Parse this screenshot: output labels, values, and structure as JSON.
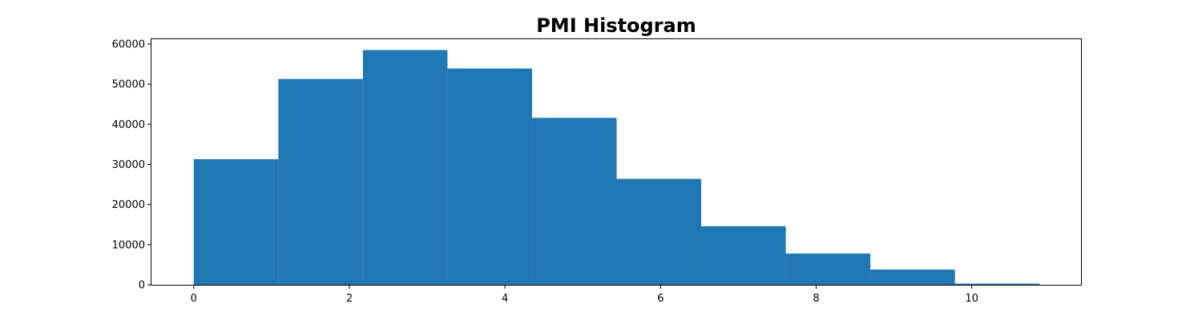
{
  "chart_data": {
    "type": "bar",
    "title": "PMI Histogram",
    "xlabel": "",
    "ylabel": "",
    "bin_edges": [
      0,
      1.087,
      2.174,
      3.261,
      4.348,
      5.435,
      6.522,
      7.609,
      8.696,
      9.783,
      10.87
    ],
    "values": [
      31300,
      51300,
      58500,
      53900,
      41600,
      26400,
      14600,
      7800,
      3800,
      300
    ],
    "xlim": [
      -0.5435,
      11.4135
    ],
    "ylim": [
      0,
      61400
    ],
    "x_ticks": [
      0,
      2,
      4,
      6,
      8,
      10
    ],
    "y_ticks": [
      0,
      10000,
      20000,
      30000,
      40000,
      50000,
      60000
    ],
    "grid": false,
    "colors": {
      "bar": "#1f77b4"
    }
  }
}
